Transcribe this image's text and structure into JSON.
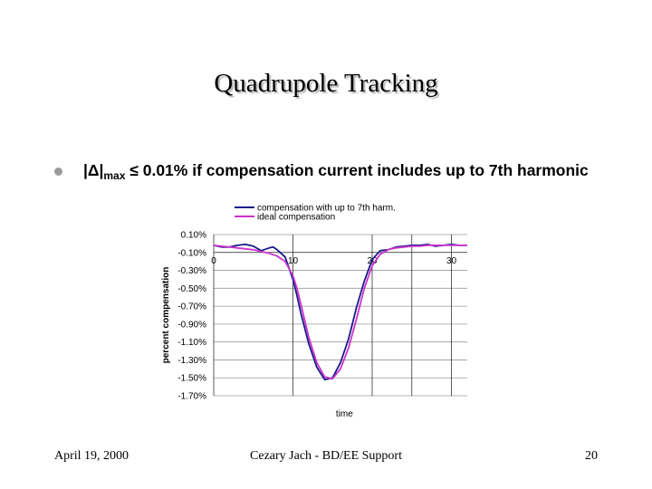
{
  "slide": {
    "title": "Quadrupole Tracking",
    "bullet": {
      "prefix": "|Δ|",
      "subscript": "max",
      "text": " ≤ 0.01% if compensation current includes up to 7th harmonic"
    },
    "footer": {
      "date": "April 19, 2000",
      "center": "Cezary Jach - BD/EE Support",
      "page": "20"
    }
  },
  "chart_data": {
    "type": "line",
    "xlabel": "time",
    "ylabel": "percent compensation",
    "xlim": [
      0,
      32
    ],
    "ylim": [
      -1.7,
      0.1
    ],
    "x_ticks": [
      0,
      10,
      20,
      30
    ],
    "x_tick_labels": [
      "0",
      "10",
      "20",
      "30"
    ],
    "y_ticks": [
      0.1,
      -0.1,
      -0.3,
      -0.5,
      -0.7,
      -0.9,
      -1.1,
      -1.3,
      -1.5,
      -1.7
    ],
    "y_tick_labels": [
      "0.10%",
      "-0.10%",
      "-0.30%",
      "-0.50%",
      "-0.70%",
      "-0.90%",
      "-1.10%",
      "-1.30%",
      "-1.50%",
      "-1.70%"
    ],
    "x_axis_at_y": -0.1,
    "grid": "horizontal lines and vertical lines at 10, 20, 25, 30",
    "legend_position": "top",
    "series": [
      {
        "name": "compensation with up to 7th harm.",
        "color": "#1a1a8c",
        "x": [
          0,
          1,
          2,
          3,
          4,
          5,
          6,
          7,
          7.5,
          8,
          9,
          10,
          10.5,
          11,
          12,
          13,
          14,
          15,
          16,
          17,
          17.5,
          18,
          19,
          20,
          21,
          22,
          23,
          24,
          25,
          26,
          27,
          28,
          29,
          30,
          31,
          32
        ],
        "y": [
          -0.02,
          -0.04,
          -0.04,
          -0.02,
          -0.01,
          -0.03,
          -0.08,
          -0.05,
          -0.04,
          -0.07,
          -0.15,
          -0.4,
          -0.58,
          -0.78,
          -1.12,
          -1.38,
          -1.52,
          -1.5,
          -1.33,
          -1.07,
          -0.9,
          -0.72,
          -0.42,
          -0.18,
          -0.08,
          -0.07,
          -0.04,
          -0.03,
          -0.02,
          -0.02,
          -0.01,
          -0.03,
          -0.02,
          -0.01,
          -0.02,
          -0.02
        ]
      },
      {
        "name": "ideal compensation",
        "color": "#cc33cc",
        "x": [
          0,
          1,
          2,
          3,
          4,
          5,
          6,
          7,
          8,
          9,
          10,
          10.5,
          11,
          12,
          13,
          14,
          15,
          16,
          17,
          18,
          19,
          20,
          21,
          22,
          23,
          24,
          25,
          26,
          27,
          28,
          29,
          30,
          31,
          32
        ],
        "y": [
          -0.02,
          -0.03,
          -0.04,
          -0.05,
          -0.06,
          -0.07,
          -0.09,
          -0.11,
          -0.14,
          -0.2,
          -0.36,
          -0.5,
          -0.68,
          -1.05,
          -1.33,
          -1.49,
          -1.51,
          -1.4,
          -1.17,
          -0.85,
          -0.5,
          -0.25,
          -0.12,
          -0.07,
          -0.05,
          -0.04,
          -0.03,
          -0.03,
          -0.02,
          -0.02,
          -0.02,
          -0.02,
          -0.02,
          -0.02
        ]
      }
    ]
  }
}
